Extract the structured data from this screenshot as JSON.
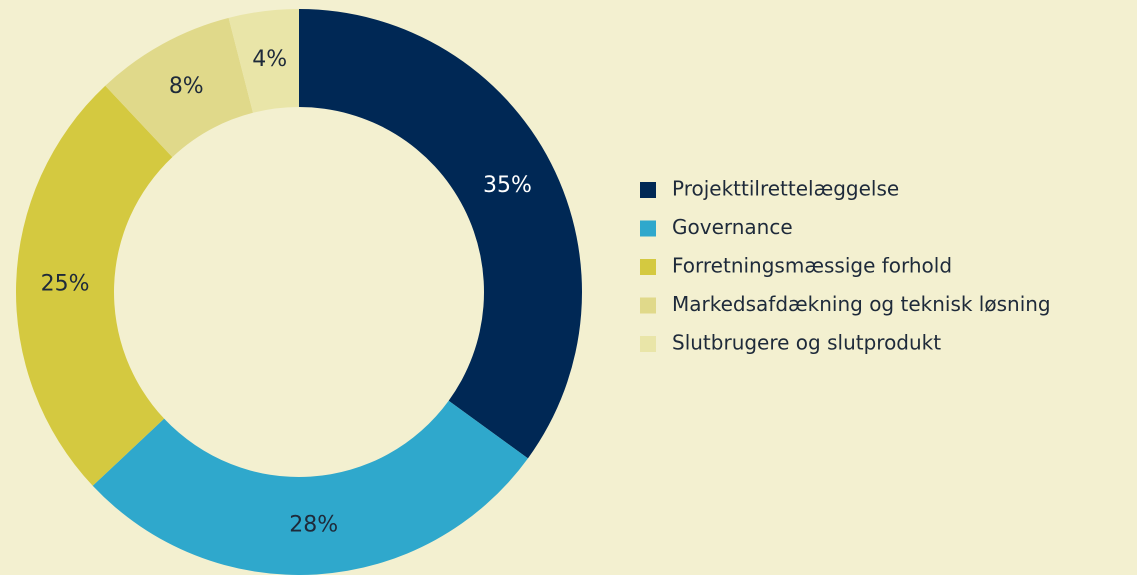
{
  "chart_data": {
    "type": "donut",
    "categories": [
      "Projekttilrettelæggelse",
      "Governance",
      "Forretningsmæssige forhold",
      "Markedsafdækning og teknisk løsning",
      "Slutbrugere og slutprodukt"
    ],
    "values": [
      35,
      28,
      25,
      8,
      4
    ],
    "value_labels": [
      "35%",
      "28%",
      "25%",
      "8%",
      "4%"
    ],
    "colors": [
      "#002855",
      "#2fa8cc",
      "#d4c940",
      "#e0d98a",
      "#e9e5a8"
    ],
    "legend": "right"
  }
}
